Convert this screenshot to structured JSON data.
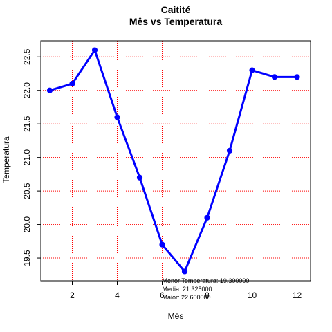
{
  "chart_data": {
    "type": "line",
    "title": "Caitité",
    "subtitle": "Mês vs Temperatura",
    "xlabel": "Mês",
    "ylabel": "Temperatura",
    "x": [
      1,
      2,
      3,
      4,
      5,
      6,
      7,
      8,
      9,
      10,
      11,
      12
    ],
    "series": [
      {
        "values": [
          22.0,
          22.1,
          22.6,
          21.6,
          20.7,
          19.7,
          19.3,
          20.1,
          21.1,
          22.3,
          22.2,
          22.2
        ]
      }
    ],
    "xlim": [
      0.6,
      12.6
    ],
    "ylim": [
      19.16,
      22.74
    ],
    "xticks": [
      2,
      4,
      6,
      8,
      10,
      12
    ],
    "xtick_labels": [
      "2",
      "4",
      "6",
      "8",
      "10",
      "12"
    ],
    "yticks": [
      19.5,
      20.0,
      20.5,
      21.0,
      21.5,
      22.0,
      22.5
    ],
    "ytick_labels": [
      "19.5",
      "20.0",
      "20.5",
      "21.0",
      "21.5",
      "22.0",
      "22.5"
    ],
    "grid": true,
    "colors": {
      "line": "#0000ff",
      "grid": "#ff0000",
      "axis": "#000000"
    },
    "annotations": [
      "Menor Temperatura: 19.300000",
      "Media: 21.325000",
      "Maior: 22.600000"
    ]
  }
}
